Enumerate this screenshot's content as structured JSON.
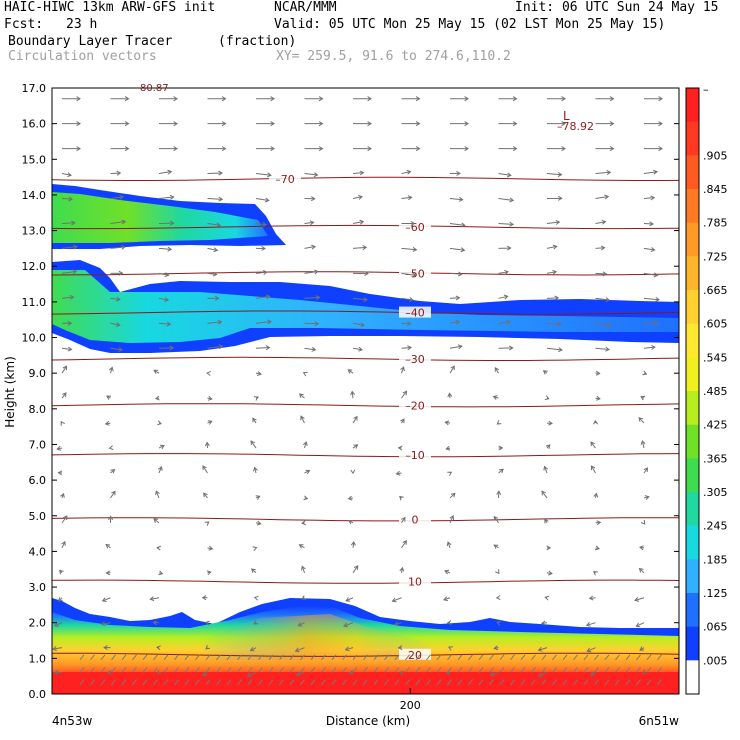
{
  "header": {
    "model": "HAIC-HIWC 13km ARW-GFS init",
    "center": "NCAR/MMM",
    "init": "Init: 06 UTC Sun 24 May 15",
    "fcst_label": "Fcst:",
    "fcst_value": "23 h",
    "valid": "Valid: 05 UTC Mon 25 May 15 (02 LST Mon 25 May 15)",
    "field1": "Boundary Layer Tracer",
    "field1_units": "(fraction)",
    "field2": "Circulation vectors",
    "xy": "XY= 259.5, 91.6 to 274.6,110.2"
  },
  "chart_data": {
    "type": "heatmap",
    "ylabel": "Height (km)",
    "xlabel": "Distance (km)",
    "ylim": [
      0,
      17
    ],
    "xlim": [
      0,
      350
    ],
    "y_ticks": [
      "0.0",
      "1.0",
      "2.0",
      "3.0",
      "4.0",
      "5.0",
      "6.0",
      "7.0",
      "8.0",
      "9.0",
      "10.0",
      "11.0",
      "12.0",
      "13.0",
      "14.0",
      "15.0",
      "16.0",
      "17.0"
    ],
    "x_tick": "200",
    "x_tick_value": 200,
    "x_left_label": "4n53w",
    "x_right_label": "6n51w",
    "colorbar_levels": [
      "–",
      ".905",
      ".845",
      ".785",
      ".725",
      ".665",
      ".605",
      ".545",
      ".485",
      ".425",
      ".365",
      ".305",
      ".245",
      ".185",
      ".125",
      ".065",
      ".005"
    ],
    "colorbar_colors": [
      "#ff2020",
      "#ff3a20",
      "#ff5a22",
      "#ff7a24",
      "#ff9a28",
      "#ffb42e",
      "#ffd030",
      "#ffe830",
      "#f0f020",
      "#b8ee20",
      "#70e028",
      "#40dc50",
      "#20d8a0",
      "#18d8e0",
      "#30b0ff",
      "#2070ff",
      "#1040ff",
      "#ffffff"
    ],
    "isotherms": [
      {
        "label": "–70",
        "y": 14.45
      },
      {
        "label": "–60",
        "y": 13.1
      },
      {
        "label": "–50",
        "y": 11.8
      },
      {
        "label": "–40",
        "y": 10.7
      },
      {
        "label": "–30",
        "y": 9.4
      },
      {
        "label": "–20",
        "y": 8.1
      },
      {
        "label": "–10",
        "y": 6.7
      },
      {
        "label": "0",
        "y": 4.9
      },
      {
        "label": "10",
        "y": 3.15
      },
      {
        "label": "20",
        "y": 1.1
      }
    ],
    "low_marker": {
      "symbol": "L",
      "value": "–78.92",
      "x": 292,
      "y": 16.2
    },
    "top_value": "–80.87"
  }
}
